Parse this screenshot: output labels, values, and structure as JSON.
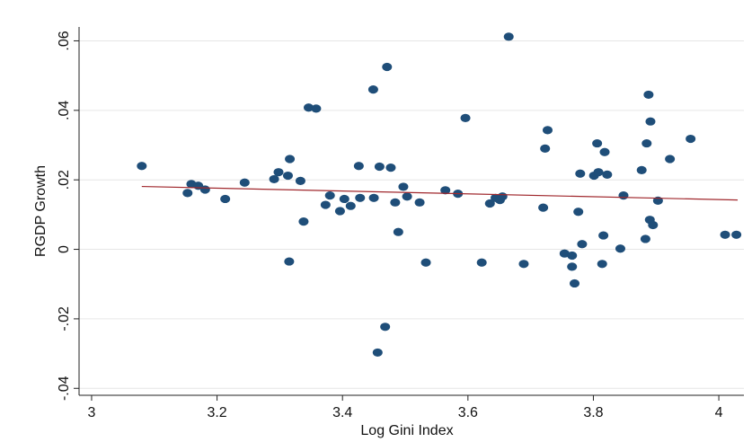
{
  "chart_data": {
    "type": "scatter",
    "xlabel": "Log Gini Index",
    "ylabel": "RGDP Growth",
    "xlim": [
      2.98,
      4.04
    ],
    "ylim": [
      -0.042,
      0.064
    ],
    "x_ticks": [
      3,
      3.2,
      3.4,
      3.6,
      3.8,
      4
    ],
    "x_tick_labels": [
      "3",
      "3.2",
      "3.4",
      "3.6",
      "3.8",
      "4"
    ],
    "y_ticks": [
      -0.04,
      -0.02,
      0,
      0.02,
      0.04,
      0.06
    ],
    "y_tick_labels": [
      "-.04",
      "-.02",
      "0",
      ".02",
      ".04",
      ".06"
    ],
    "grid": "horizontal",
    "legend": "none",
    "marker_color": "#1f4e79",
    "fit_color": "#a0282d",
    "fit_line": {
      "x": [
        3.08,
        4.03
      ],
      "y": [
        0.0181,
        0.0142
      ]
    },
    "points": [
      [
        3.08,
        0.024
      ],
      [
        3.153,
        0.0162
      ],
      [
        3.159,
        0.0188
      ],
      [
        3.17,
        0.0183
      ],
      [
        3.181,
        0.0172
      ],
      [
        3.213,
        0.0145
      ],
      [
        3.244,
        0.0192
      ],
      [
        3.291,
        0.0202
      ],
      [
        3.298,
        0.0222
      ],
      [
        3.313,
        0.0212
      ],
      [
        3.316,
        0.026
      ],
      [
        3.315,
        -0.0035
      ],
      [
        3.333,
        0.0197
      ],
      [
        3.338,
        0.008
      ],
      [
        3.346,
        0.0408
      ],
      [
        3.358,
        0.0405
      ],
      [
        3.373,
        0.0128
      ],
      [
        3.38,
        0.0155
      ],
      [
        3.396,
        0.011
      ],
      [
        3.403,
        0.0145
      ],
      [
        3.413,
        0.0125
      ],
      [
        3.426,
        0.024
      ],
      [
        3.428,
        0.0148
      ],
      [
        3.45,
        0.0148
      ],
      [
        3.449,
        0.046
      ],
      [
        3.459,
        0.0238
      ],
      [
        3.456,
        -0.0297
      ],
      [
        3.468,
        -0.0223
      ],
      [
        3.471,
        0.0525
      ],
      [
        3.477,
        0.0235
      ],
      [
        3.484,
        0.0135
      ],
      [
        3.489,
        0.005
      ],
      [
        3.497,
        0.018
      ],
      [
        3.503,
        0.0152
      ],
      [
        3.523,
        0.0135
      ],
      [
        3.533,
        -0.0038
      ],
      [
        3.564,
        0.017
      ],
      [
        3.584,
        0.016
      ],
      [
        3.596,
        0.0378
      ],
      [
        3.622,
        -0.0038
      ],
      [
        3.635,
        0.0132
      ],
      [
        3.644,
        0.0148
      ],
      [
        3.651,
        0.0142
      ],
      [
        3.655,
        0.0152
      ],
      [
        3.665,
        0.0612
      ],
      [
        3.689,
        -0.0042
      ],
      [
        3.72,
        0.012
      ],
      [
        3.723,
        0.029
      ],
      [
        3.727,
        0.0343
      ],
      [
        3.754,
        -0.0012
      ],
      [
        3.766,
        -0.0018
      ],
      [
        3.766,
        -0.005
      ],
      [
        3.77,
        -0.0098
      ],
      [
        3.776,
        0.0108
      ],
      [
        3.779,
        0.0218
      ],
      [
        3.782,
        0.0015
      ],
      [
        3.801,
        0.0212
      ],
      [
        3.806,
        0.0305
      ],
      [
        3.808,
        0.0222
      ],
      [
        3.814,
        -0.0042
      ],
      [
        3.816,
        0.004
      ],
      [
        3.818,
        0.028
      ],
      [
        3.822,
        0.0215
      ],
      [
        3.843,
        0.0002
      ],
      [
        3.848,
        0.0155
      ],
      [
        3.877,
        0.0228
      ],
      [
        3.883,
        0.003
      ],
      [
        3.885,
        0.0305
      ],
      [
        3.888,
        0.0445
      ],
      [
        3.89,
        0.0085
      ],
      [
        3.891,
        0.0368
      ],
      [
        3.895,
        0.007
      ],
      [
        3.903,
        0.014
      ],
      [
        3.922,
        0.026
      ],
      [
        3.955,
        0.0318
      ],
      [
        4.01,
        0.0042
      ],
      [
        4.028,
        0.0042
      ]
    ]
  }
}
